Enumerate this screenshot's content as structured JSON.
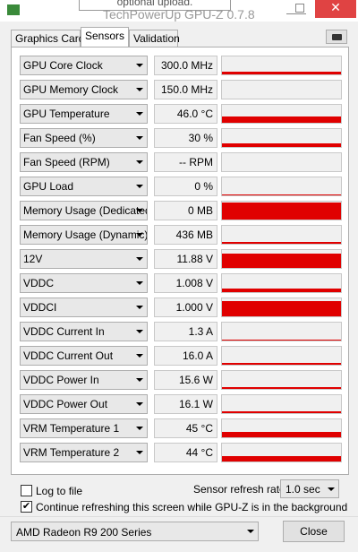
{
  "window": {
    "title": "TechPowerUp GPU-Z 0.7.8",
    "tooltip": "optional upload."
  },
  "tabs": [
    "Graphics Card",
    "Sensors",
    "Validation"
  ],
  "sensors": [
    {
      "name": "GPU Core Clock",
      "value": "300.0 MHz"
    },
    {
      "name": "GPU Memory Clock",
      "value": "150.0 MHz"
    },
    {
      "name": "GPU Temperature",
      "value": "46.0 °C"
    },
    {
      "name": "Fan Speed (%)",
      "value": "30 %"
    },
    {
      "name": "Fan Speed (RPM)",
      "value": "-- RPM"
    },
    {
      "name": "GPU Load",
      "value": "0 %"
    },
    {
      "name": "Memory Usage (Dedicated)",
      "value": "0 MB"
    },
    {
      "name": "Memory Usage (Dynamic)",
      "value": "436 MB"
    },
    {
      "name": "12V",
      "value": "11.88 V"
    },
    {
      "name": "VDDC",
      "value": "1.008 V"
    },
    {
      "name": "VDDCI",
      "value": "1.000 V"
    },
    {
      "name": "VDDC Current In",
      "value": "1.3 A"
    },
    {
      "name": "VDDC Current Out",
      "value": "16.0 A"
    },
    {
      "name": "VDDC Power In",
      "value": "15.6 W"
    },
    {
      "name": "VDDC Power Out",
      "value": "16.1 W"
    },
    {
      "name": "VRM Temperature 1",
      "value": "45 °C"
    },
    {
      "name": "VRM Temperature 2",
      "value": "44 °C"
    }
  ],
  "footer": {
    "log_to_file": "Log to file",
    "refresh_label": "Sensor refresh rate:",
    "refresh_rate": "1.0 sec",
    "continue_refreshing": "Continue refreshing this screen while GPU-Z is in the background",
    "device": "AMD Radeon R9 200 Series",
    "close": "Close"
  }
}
